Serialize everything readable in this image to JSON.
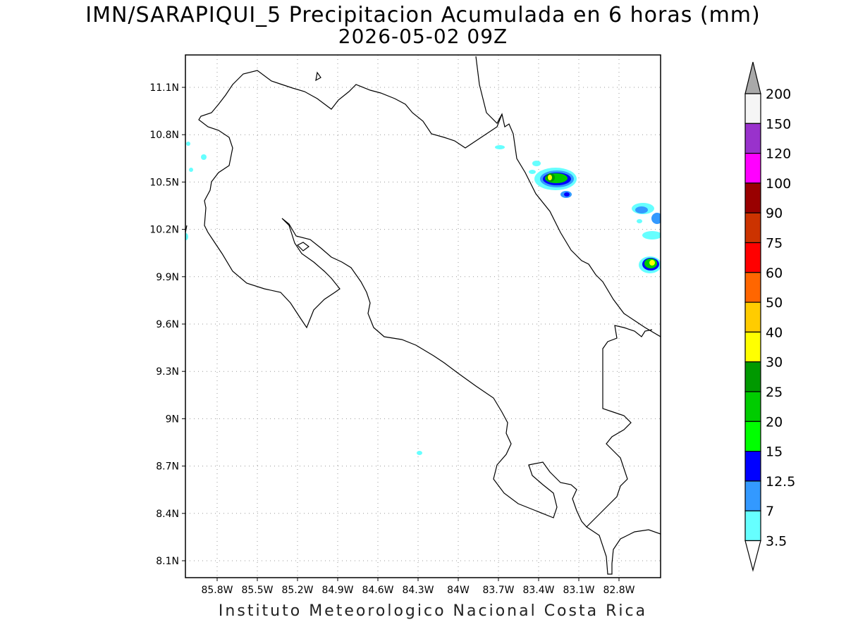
{
  "title_line1": "IMN/SARAPIQUI_5 Precipitacion Acumulada en 6 horas (mm)",
  "title_line2": "2026-05-02 09Z",
  "footer": "Instituto Meteorologico Nacional Costa Rica",
  "map": {
    "lon_labels": [
      "85.8W",
      "85.5W",
      "85.2W",
      "84.9W",
      "84.6W",
      "84.3W",
      "84W",
      "83.7W",
      "83.4W",
      "83.1W",
      "82.8W"
    ],
    "lat_labels": [
      "11.1N",
      "10.8N",
      "10.5N",
      "10.2N",
      "9.9N",
      "9.6N",
      "9.3N",
      "9N",
      "8.7N",
      "8.4N",
      "8.1N"
    ],
    "gridlines": "dotted"
  },
  "colorbar": {
    "labels": [
      "200",
      "150",
      "120",
      "100",
      "90",
      "75",
      "60",
      "50",
      "40",
      "30",
      "25",
      "20",
      "15",
      "12.5",
      "7",
      "3.5"
    ],
    "colors": [
      "#f5f5f5",
      "#9932cc",
      "#ff00ff",
      "#990000",
      "#cc3300",
      "#ff0000",
      "#ff6600",
      "#ffcc00",
      "#ffff00",
      "#009900",
      "#00cc00",
      "#00ff00",
      "#0000ff",
      "#3399ff",
      "#66ffff"
    ],
    "top_arrow_color": "#a9a9a9",
    "bottom_arrow_color": "#ffffff"
  }
}
